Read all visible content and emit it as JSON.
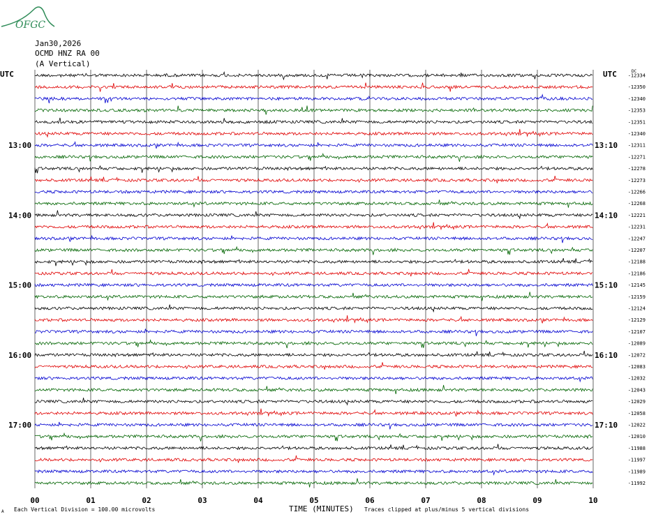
{
  "logo": {
    "text": "OFGC",
    "color": "#2e8b57"
  },
  "header": {
    "date": "Jan30,2026",
    "station": "OCMD HNZ RA 00",
    "component": "(A Vertical)"
  },
  "left_utc_label": "UTC",
  "right_utc_label": "UTC",
  "left_time_labels": [
    "13:00",
    "14:00",
    "15:00",
    "16:00",
    "17:00"
  ],
  "right_time_labels": [
    "13:10",
    "14:10",
    "15:10",
    "16:10",
    "17:10"
  ],
  "footer": {
    "division_note": "Each Vertical Division =  100.00 microvolts",
    "clip_note": "Traces clipped at plus/minus 5 vertical divisions",
    "x_title": "TIME (MINUTES)"
  },
  "colors": {
    "black": "#000000",
    "red": "#e00000",
    "blue": "#0000d0",
    "green": "#006400",
    "grid": "#000000"
  },
  "chart_data": {
    "type": "line",
    "title": "OCMD HNZ RA 00",
    "xlabel": "TIME (MINUTES)",
    "xlim": [
      0,
      10
    ],
    "x_ticks": [
      "00",
      "01",
      "02",
      "03",
      "04",
      "05",
      "06",
      "07",
      "08",
      "09",
      "10"
    ],
    "trace_color_cycle": [
      "black",
      "red",
      "blue",
      "green"
    ],
    "right_offset_labels": [
      "-12334",
      "-12350",
      "-12340",
      "-12353",
      "-12351",
      "-12340",
      "-12311",
      "-12271",
      "-12278",
      "-12273",
      "-12266",
      "-12268",
      "-12221",
      "-12231",
      "-12247",
      "-12207",
      "-12188",
      "-12186",
      "-12145",
      "-12159",
      "-12124",
      "-12129",
      "-12107",
      "-12089",
      "-12072",
      "-12083",
      "-12032",
      "-12043",
      "-12029",
      "-12058",
      "-12022",
      "-12010",
      "-11988",
      "-11997",
      "-11989",
      "-11992"
    ],
    "right_top_marker": "DC",
    "lower_left_mark": "A"
  }
}
